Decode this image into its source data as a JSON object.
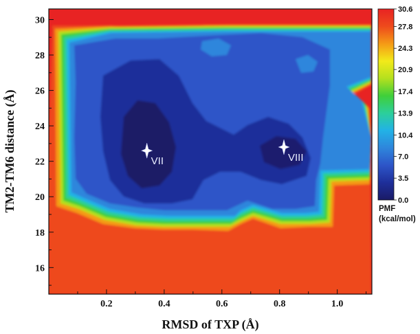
{
  "chart_data": {
    "type": "heatmap",
    "title": "",
    "xlabel": "RMSD of TXP (Å)",
    "ylabel": "TM2-TM6 distance (Å)",
    "xlim": [
      0.0,
      1.12
    ],
    "ylim": [
      14.5,
      30.6
    ],
    "x_ticks": [
      "0.2",
      "0.4",
      "0.6",
      "0.8",
      "1.0"
    ],
    "x_tick_values": [
      0.2,
      0.4,
      0.6,
      0.8,
      1.0
    ],
    "y_ticks": [
      "16",
      "18",
      "20",
      "22",
      "24",
      "26",
      "28",
      "30"
    ],
    "y_tick_values": [
      16,
      18,
      20,
      22,
      24,
      26,
      28,
      30
    ],
    "colorbar": {
      "title_line1": "PMF",
      "title_line2": "(kcal/mol)",
      "labels": [
        "30.6",
        "27.8",
        "24.3",
        "20.9",
        "17.4",
        "13.9",
        "10.4",
        "7.0",
        "3.5",
        "0.0"
      ],
      "values": [
        30.6,
        27.8,
        24.3,
        20.9,
        17.4,
        13.9,
        10.4,
        7.0,
        3.5,
        0.0
      ],
      "min": 0.0,
      "max": 30.6,
      "colors": [
        "#1a1a66",
        "#1e2f9a",
        "#2d55c8",
        "#2e86dc",
        "#22b2e6",
        "#2ccf9a",
        "#3fcf3a",
        "#b4e01e",
        "#f2ea1a",
        "#f59a16",
        "#ee4a1c",
        "#e82323"
      ]
    },
    "annotations": [
      {
        "label": "VII",
        "x": 0.34,
        "y": 22.6
      },
      {
        "label": "VIII",
        "x": 0.815,
        "y": 22.8
      }
    ],
    "background_color": "#e82323"
  }
}
